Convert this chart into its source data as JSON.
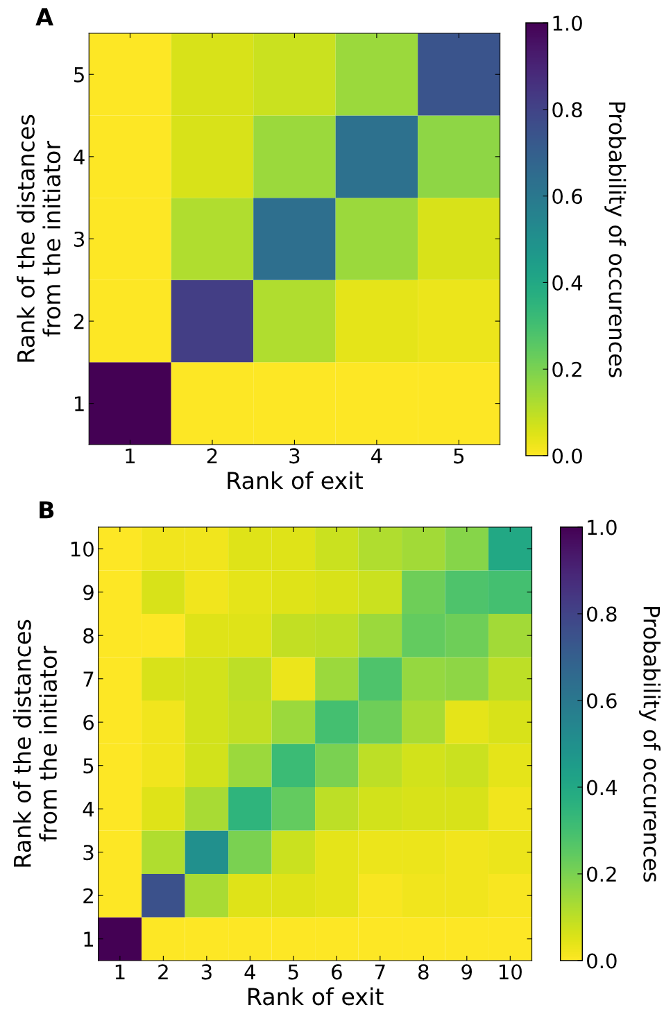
{
  "chart_data": [
    {
      "type": "heatmap",
      "title": "A",
      "xlabel": "Rank of exit",
      "ylabel": "Rank of the distances\nfrom the initiator",
      "clabel": "Probability of occurences",
      "categories": [
        "1",
        "2",
        "3",
        "4",
        "5"
      ],
      "y_categories": [
        "5",
        "4",
        "3",
        "2",
        "1"
      ],
      "cells": [
        [
          0.0,
          0.06,
          0.08,
          0.15,
          0.74
        ],
        [
          0.0,
          0.06,
          0.15,
          0.63,
          0.17
        ],
        [
          0.0,
          0.12,
          0.64,
          0.15,
          0.06
        ],
        [
          0.0,
          0.82,
          0.12,
          0.04,
          0.03
        ],
        [
          1.0,
          0.0,
          0.0,
          0.0,
          0.0
        ]
      ],
      "clim": [
        0,
        1
      ],
      "cticks": [
        {
          "value": 0,
          "label": "0.0"
        },
        {
          "value": 0.2,
          "label": "0.2"
        },
        {
          "value": 0.4,
          "label": "0.4"
        },
        {
          "value": 0.6,
          "label": "0.6"
        },
        {
          "value": 0.8,
          "label": "0.8"
        },
        {
          "value": 1,
          "label": "1.0"
        }
      ]
    },
    {
      "type": "heatmap",
      "title": "B",
      "xlabel": "Rank of exit",
      "ylabel": "Rank of the distances\nfrom the initiator",
      "clabel": "Probability of occurences",
      "categories": [
        "1",
        "2",
        "3",
        "4",
        "5",
        "6",
        "7",
        "8",
        "9",
        "10"
      ],
      "y_categories": [
        "10",
        "9",
        "8",
        "7",
        "6",
        "5",
        "4",
        "3",
        "2",
        "1"
      ],
      "cells": [
        [
          0.0,
          0.02,
          0.02,
          0.05,
          0.05,
          0.08,
          0.12,
          0.14,
          0.18,
          0.4
        ],
        [
          0.0,
          0.06,
          0.02,
          0.04,
          0.05,
          0.06,
          0.08,
          0.22,
          0.28,
          0.3
        ],
        [
          0.0,
          0.0,
          0.05,
          0.05,
          0.09,
          0.1,
          0.15,
          0.24,
          0.22,
          0.14
        ],
        [
          0.0,
          0.06,
          0.07,
          0.1,
          0.03,
          0.15,
          0.28,
          0.16,
          0.17,
          0.1
        ],
        [
          0.0,
          0.02,
          0.07,
          0.09,
          0.15,
          0.3,
          0.22,
          0.13,
          0.04,
          0.06
        ],
        [
          0.0,
          0.02,
          0.07,
          0.15,
          0.32,
          0.2,
          0.1,
          0.07,
          0.08,
          0.04
        ],
        [
          0.0,
          0.05,
          0.13,
          0.35,
          0.24,
          0.1,
          0.07,
          0.06,
          0.06,
          0.02
        ],
        [
          0.0,
          0.12,
          0.5,
          0.2,
          0.08,
          0.04,
          0.03,
          0.03,
          0.02,
          0.03
        ],
        [
          0.0,
          0.75,
          0.13,
          0.05,
          0.05,
          0.04,
          0.01,
          0.02,
          0.02,
          0.01
        ],
        [
          1.0,
          0.0,
          0.0,
          0.0,
          0.0,
          0.0,
          0.0,
          0.0,
          0.0,
          0.0
        ]
      ],
      "clim": [
        0,
        1
      ],
      "cticks": [
        {
          "value": 0,
          "label": "0.0"
        },
        {
          "value": 0.2,
          "label": "0.2"
        },
        {
          "value": 0.4,
          "label": "0.4"
        },
        {
          "value": 0.6,
          "label": "0.6"
        },
        {
          "value": 0.8,
          "label": "0.8"
        },
        {
          "value": 1,
          "label": "1.0"
        }
      ]
    }
  ]
}
